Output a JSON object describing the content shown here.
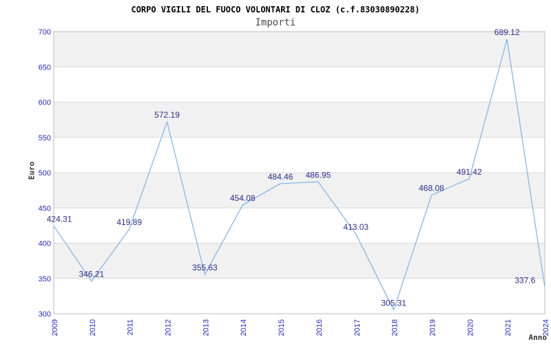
{
  "chart_data": {
    "type": "line",
    "title": "CORPO VIGILI DEL FUOCO VOLONTARI DI CLOZ (c.f.83030890228)",
    "subtitle": "Importi",
    "xlabel": "Anno",
    "ylabel": "Euro",
    "categories": [
      "2009",
      "2010",
      "2011",
      "2012",
      "2013",
      "2014",
      "2015",
      "2016",
      "2017",
      "2018",
      "2019",
      "2020",
      "2021",
      "2024"
    ],
    "values": [
      424.31,
      346.21,
      419.89,
      572.19,
      355.63,
      454.08,
      484.46,
      486.95,
      413.03,
      305.31,
      468.08,
      491.42,
      689.12,
      337.6
    ],
    "point_labels": [
      "424.31",
      "346.21",
      "419.89",
      "572.19",
      "355.63",
      "454.08",
      "484.46",
      "486.95",
      "413.03",
      "305.31",
      "468.08",
      "491.42",
      "689.12",
      "337.6"
    ],
    "ytick_labels": [
      "300",
      "350",
      "400",
      "450",
      "500",
      "550",
      "600",
      "650",
      "700"
    ],
    "ylim": [
      300,
      700
    ],
    "ytick_step": 50,
    "grid": true,
    "legend": false,
    "band_fill": "alternating horizontal stripes, gray topmost",
    "colors": {
      "line": "#7db1eb",
      "point_label": "#2d2d8c",
      "tick_label": "#2626cc",
      "band_gray": "#f1f1f1",
      "band_white": "#ffffff",
      "gridline": "#d9d9d9",
      "plot_border": "#bdbdbd",
      "title": "#000000",
      "subtitle": "#4d4d4d",
      "axis_title": "#333333"
    }
  }
}
